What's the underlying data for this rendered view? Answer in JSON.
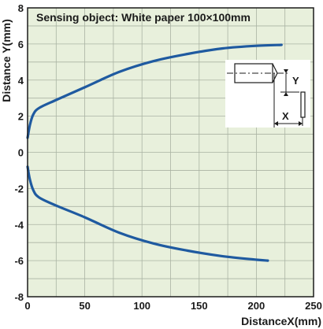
{
  "colors": {
    "plot_background": "#e8f0dc",
    "grid": "#aab3a3",
    "curve": "#1f5aa0",
    "frame": "#1a1a1a"
  },
  "chart_data": {
    "type": "line",
    "title": "",
    "annotation": "Sensing object: White paper 100×100mm",
    "xlabel": "DistanceX(mm)",
    "ylabel": "Distance Y(mm)",
    "xlim": [
      0,
      250
    ],
    "ylim": [
      -8,
      8
    ],
    "x_ticks": [
      "0",
      "50",
      "100",
      "150",
      "200",
      "250"
    ],
    "y_ticks": [
      "8",
      "6",
      "4",
      "2",
      "0",
      "-2",
      "-4",
      "-6",
      "-8"
    ],
    "grid": true,
    "series": [
      {
        "x": [
          0,
          2,
          5,
          10,
          25,
          50,
          80,
          110,
          140,
          170,
          200,
          222
        ],
        "y": [
          0.8,
          1.5,
          2.1,
          2.45,
          2.9,
          3.6,
          4.45,
          5.05,
          5.45,
          5.75,
          5.9,
          5.95
        ]
      },
      {
        "x": [
          0,
          2,
          5,
          10,
          25,
          50,
          80,
          110,
          140,
          170,
          200,
          210
        ],
        "y": [
          -0.8,
          -1.5,
          -2.1,
          -2.5,
          -2.95,
          -3.6,
          -4.45,
          -5.05,
          -5.45,
          -5.75,
          -5.95,
          -6.0
        ]
      }
    ]
  },
  "diagram": {
    "y_label": "Y",
    "x_label": "X"
  }
}
